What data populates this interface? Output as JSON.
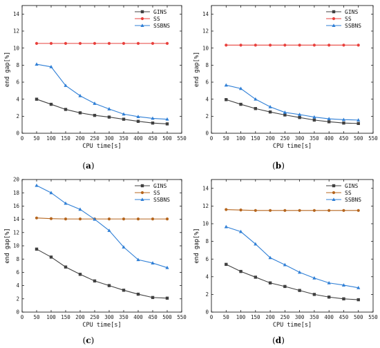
{
  "chart_data": [
    {
      "type": "line",
      "panel_label": "a",
      "xlabel": "CPU time[s]",
      "ylabel": "end gap[%]",
      "xlim": [
        0,
        550
      ],
      "ylim": [
        0,
        15
      ],
      "x_ticks": [
        0,
        50,
        100,
        150,
        200,
        250,
        300,
        350,
        400,
        450,
        500,
        550
      ],
      "y_ticks": [
        0,
        2,
        4,
        6,
        8,
        10,
        12,
        14
      ],
      "legend_position": "top-right",
      "grid": false,
      "x": [
        50,
        100,
        150,
        200,
        250,
        300,
        350,
        400,
        450,
        500
      ],
      "series": [
        {
          "name": "GINS",
          "color": "#404040",
          "marker": "square",
          "values": [
            4.0,
            3.4,
            2.8,
            2.4,
            2.1,
            1.9,
            1.65,
            1.4,
            1.2,
            1.1
          ]
        },
        {
          "name": "SS",
          "color": "#e8403c",
          "marker": "circle",
          "values": [
            10.55,
            10.55,
            10.55,
            10.55,
            10.55,
            10.55,
            10.55,
            10.55,
            10.55,
            10.55
          ]
        },
        {
          "name": "SSBNS",
          "color": "#2f7fd6",
          "marker": "triangle",
          "values": [
            8.1,
            7.8,
            5.6,
            4.4,
            3.5,
            2.85,
            2.25,
            1.95,
            1.75,
            1.65
          ]
        }
      ]
    },
    {
      "type": "line",
      "panel_label": "b",
      "xlabel": "CPU time[s]",
      "ylabel": "end gap[%]",
      "xlim": [
        0,
        550
      ],
      "ylim": [
        0,
        15
      ],
      "x_ticks": [
        0,
        50,
        100,
        150,
        200,
        250,
        300,
        350,
        400,
        450,
        500,
        550
      ],
      "y_ticks": [
        0,
        2,
        4,
        6,
        8,
        10,
        12,
        14
      ],
      "legend_position": "top-right",
      "grid": false,
      "x": [
        50,
        100,
        150,
        200,
        250,
        300,
        350,
        400,
        450,
        500
      ],
      "series": [
        {
          "name": "GINS",
          "color": "#404040",
          "marker": "square",
          "values": [
            3.95,
            3.4,
            2.9,
            2.5,
            2.15,
            1.85,
            1.55,
            1.35,
            1.2,
            1.15
          ]
        },
        {
          "name": "SS",
          "color": "#e8403c",
          "marker": "circle",
          "values": [
            10.35,
            10.35,
            10.35,
            10.35,
            10.35,
            10.35,
            10.35,
            10.35,
            10.35,
            10.35
          ]
        },
        {
          "name": "SSBNS",
          "color": "#2f7fd6",
          "marker": "triangle",
          "values": [
            5.65,
            5.25,
            4.0,
            3.1,
            2.45,
            2.2,
            1.9,
            1.7,
            1.6,
            1.55
          ]
        }
      ]
    },
    {
      "type": "line",
      "panel_label": "c",
      "xlabel": "CPU time[s]",
      "ylabel": "end gap[%]",
      "xlim": [
        0,
        550
      ],
      "ylim": [
        0,
        20
      ],
      "x_ticks": [
        0,
        50,
        100,
        150,
        200,
        250,
        300,
        350,
        400,
        450,
        500,
        550
      ],
      "y_ticks": [
        0,
        2,
        4,
        6,
        8,
        10,
        12,
        14,
        16,
        18,
        20
      ],
      "legend_position": "top-right",
      "grid": false,
      "x": [
        50,
        100,
        150,
        200,
        250,
        300,
        350,
        400,
        450,
        500
      ],
      "series": [
        {
          "name": "GINS",
          "color": "#404040",
          "marker": "square",
          "values": [
            9.5,
            8.3,
            6.8,
            5.7,
            4.7,
            4.0,
            3.3,
            2.7,
            2.2,
            2.1
          ]
        },
        {
          "name": "SS",
          "color": "#b5651d",
          "marker": "circle",
          "values": [
            14.2,
            14.1,
            14.05,
            14.05,
            14.05,
            14.05,
            14.05,
            14.05,
            14.05,
            14.05
          ]
        },
        {
          "name": "SSBNS",
          "color": "#2f7fd6",
          "marker": "triangle",
          "values": [
            19.1,
            18.0,
            16.4,
            15.5,
            14.0,
            12.3,
            9.8,
            7.9,
            7.4,
            6.7
          ]
        }
      ]
    },
    {
      "type": "line",
      "panel_label": "d",
      "xlabel": "CPU time[s]",
      "ylabel": "end gap[%]",
      "xlim": [
        0,
        550
      ],
      "ylim": [
        0,
        15
      ],
      "x_ticks": [
        0,
        50,
        100,
        150,
        200,
        250,
        300,
        350,
        400,
        450,
        500,
        550
      ],
      "y_ticks": [
        0,
        2,
        4,
        6,
        8,
        10,
        12,
        14
      ],
      "legend_position": "top-right",
      "grid": false,
      "x": [
        50,
        100,
        150,
        200,
        250,
        300,
        350,
        400,
        450,
        500
      ],
      "series": [
        {
          "name": "GINS",
          "color": "#404040",
          "marker": "square",
          "values": [
            5.4,
            4.6,
            3.95,
            3.3,
            2.9,
            2.45,
            2.0,
            1.7,
            1.5,
            1.4
          ]
        },
        {
          "name": "SS",
          "color": "#b5651d",
          "marker": "circle",
          "values": [
            11.6,
            11.55,
            11.5,
            11.5,
            11.5,
            11.5,
            11.5,
            11.5,
            11.5,
            11.5
          ]
        },
        {
          "name": "SSBNS",
          "color": "#2f7fd6",
          "marker": "triangle",
          "values": [
            9.65,
            9.1,
            7.7,
            6.15,
            5.35,
            4.5,
            3.85,
            3.3,
            3.05,
            2.75
          ]
        }
      ]
    }
  ]
}
